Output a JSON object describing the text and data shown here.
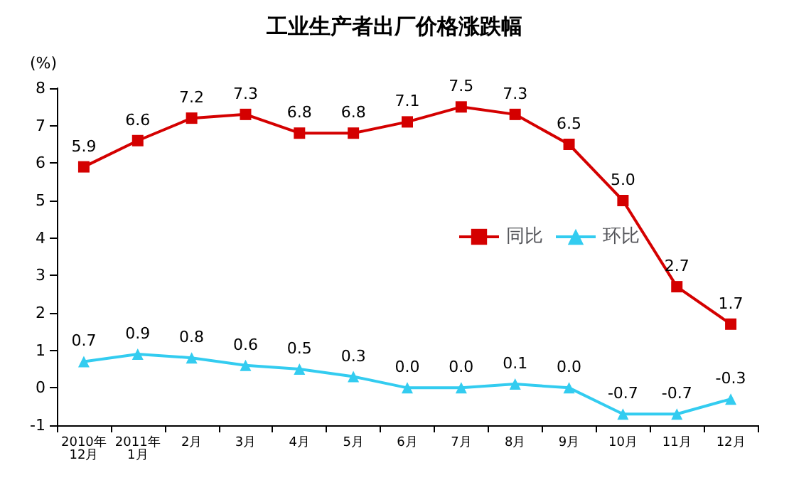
{
  "chart_data": {
    "type": "line",
    "title": "工业生产者出厂价格涨跌幅",
    "ylabel": "(%)",
    "categories": [
      "2010年\n12月",
      "2011年\n1月",
      "2月",
      "3月",
      "4月",
      "5月",
      "6月",
      "7月",
      "8月",
      "9月",
      "10月",
      "11月",
      "12月"
    ],
    "series": [
      {
        "name": "同比",
        "color": "#d40000",
        "marker": "square",
        "values": [
          5.9,
          6.6,
          7.2,
          7.3,
          6.8,
          6.8,
          7.1,
          7.5,
          7.3,
          6.5,
          5.0,
          2.7,
          1.7
        ],
        "value_labels": [
          "5.9",
          "6.6",
          "7.2",
          "7.3",
          "6.8",
          "6.8",
          "7.1",
          "7.5",
          "7.3",
          "6.5",
          "5.0",
          "2.7",
          "1.7"
        ]
      },
      {
        "name": "环比",
        "color": "#33ccf0",
        "marker": "triangle",
        "values": [
          0.7,
          0.9,
          0.8,
          0.6,
          0.5,
          0.3,
          0.0,
          0.0,
          0.1,
          0.0,
          -0.7,
          -0.7,
          -0.3
        ],
        "value_labels": [
          "0.7",
          "0.9",
          "0.8",
          "0.6",
          "0.5",
          "0.3",
          "0.0",
          "0.0",
          "0.1",
          "0.0",
          "-0.7",
          "-0.7",
          "-0.3"
        ]
      }
    ],
    "ylim": [
      -1,
      8
    ],
    "yticks": [
      -1,
      0,
      1,
      2,
      3,
      4,
      5,
      6,
      7,
      8
    ],
    "grid": false,
    "legend": "right"
  }
}
